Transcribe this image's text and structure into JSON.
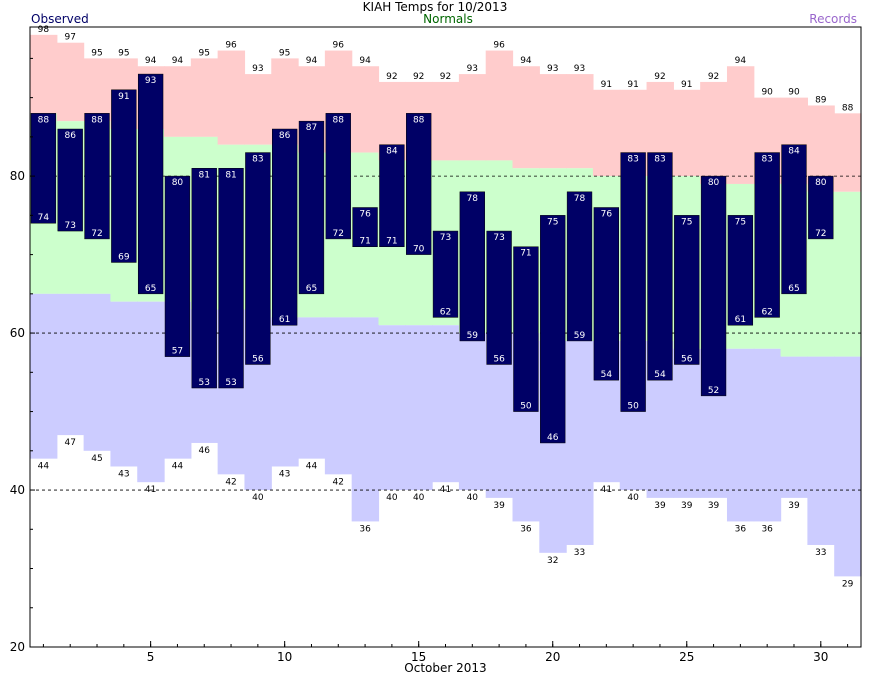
{
  "chart_data": {
    "type": "bar",
    "title": "KIAH Temps for 10/2013",
    "xlabel": "October 2013",
    "ylabel": "",
    "legend": {
      "observed": "Observed",
      "normals": "Normals",
      "records": "Records"
    },
    "colors": {
      "observed": "#000066",
      "normals_band": "#ccffcc",
      "record_high_band": "#ffcccc",
      "record_low_band": "#ccccff",
      "observed_label": "#000066",
      "normals_label": "#006600",
      "records_label": "#9966cc",
      "bar_text": "#ffffff",
      "record_text": "#000000"
    },
    "ylim": [
      20,
      99
    ],
    "xlim": [
      0.5,
      31.5
    ],
    "yticks": [
      20,
      40,
      60,
      80
    ],
    "grid_y": [
      40,
      60,
      80
    ],
    "xticks": [
      5,
      10,
      15,
      20,
      25,
      30
    ],
    "days": [
      1,
      2,
      3,
      4,
      5,
      6,
      7,
      8,
      9,
      10,
      11,
      12,
      13,
      14,
      15,
      16,
      17,
      18,
      19,
      20,
      21,
      22,
      23,
      24,
      25,
      26,
      27,
      28,
      29,
      30,
      31
    ],
    "observed_high": [
      88,
      86,
      88,
      91,
      93,
      80,
      81,
      81,
      83,
      86,
      87,
      88,
      76,
      84,
      88,
      73,
      78,
      73,
      71,
      75,
      78,
      76,
      83,
      83,
      75,
      80,
      75,
      83,
      84,
      80,
      null
    ],
    "observed_low": [
      74,
      73,
      72,
      69,
      65,
      57,
      53,
      53,
      56,
      61,
      65,
      72,
      71,
      71,
      70,
      62,
      59,
      56,
      50,
      46,
      59,
      54,
      50,
      54,
      56,
      52,
      61,
      62,
      65,
      72,
      null
    ],
    "record_high": [
      98,
      97,
      95,
      95,
      94,
      94,
      95,
      96,
      93,
      95,
      94,
      96,
      94,
      92,
      92,
      92,
      93,
      96,
      94,
      93,
      93,
      91,
      91,
      92,
      91,
      92,
      94,
      90,
      90,
      89,
      88
    ],
    "record_low": [
      44,
      47,
      45,
      43,
      41,
      44,
      46,
      42,
      40,
      43,
      44,
      42,
      36,
      40,
      40,
      41,
      40,
      39,
      36,
      32,
      33,
      41,
      40,
      39,
      39,
      39,
      36,
      36,
      39,
      33,
      29
    ],
    "normal_high": [
      88,
      87,
      87,
      86,
      86,
      85,
      85,
      84,
      84,
      84,
      83,
      83,
      83,
      82,
      82,
      82,
      82,
      82,
      81,
      81,
      81,
      80,
      80,
      80,
      80,
      79,
      79,
      79,
      79,
      78,
      78
    ],
    "normal_low": [
      65,
      65,
      65,
      64,
      64,
      64,
      63,
      63,
      63,
      62,
      62,
      62,
      62,
      61,
      61,
      61,
      60,
      60,
      60,
      59,
      59,
      59,
      59,
      59,
      58,
      58,
      58,
      58,
      57,
      57,
      57
    ]
  }
}
